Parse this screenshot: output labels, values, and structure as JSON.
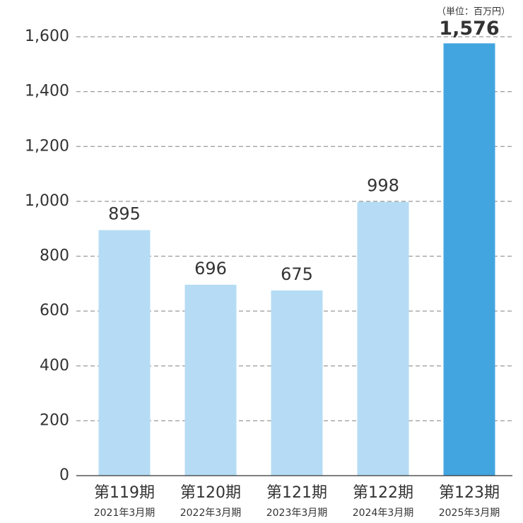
{
  "chart_data": {
    "type": "bar",
    "unit_label": "（単位：百万円）",
    "categories": [
      "第119期",
      "第120期",
      "第121期",
      "第122期",
      "第123期"
    ],
    "category_sublabels": [
      "2021年3月期",
      "2022年3月期",
      "2023年3月期",
      "2024年3月期",
      "2025年3月期"
    ],
    "values": [
      895,
      696,
      675,
      998,
      1576
    ],
    "value_labels": [
      "895",
      "696",
      "675",
      "998",
      "1,576"
    ],
    "colors": [
      "#b5dcf4",
      "#b5dcf4",
      "#b5dcf4",
      "#b5dcf4",
      "#42a5e0"
    ],
    "label_bold": [
      false,
      false,
      false,
      false,
      true
    ],
    "ylim": [
      0,
      1600
    ],
    "yticks": [
      0,
      200,
      400,
      600,
      800,
      {
        "value": 1000,
        "label": "1,000"
      },
      {
        "value": 1200,
        "label": "1,200"
      },
      {
        "value": 1400,
        "label": "1,400"
      },
      {
        "value": 1600,
        "label": "1,600"
      }
    ],
    "grid": true
  }
}
